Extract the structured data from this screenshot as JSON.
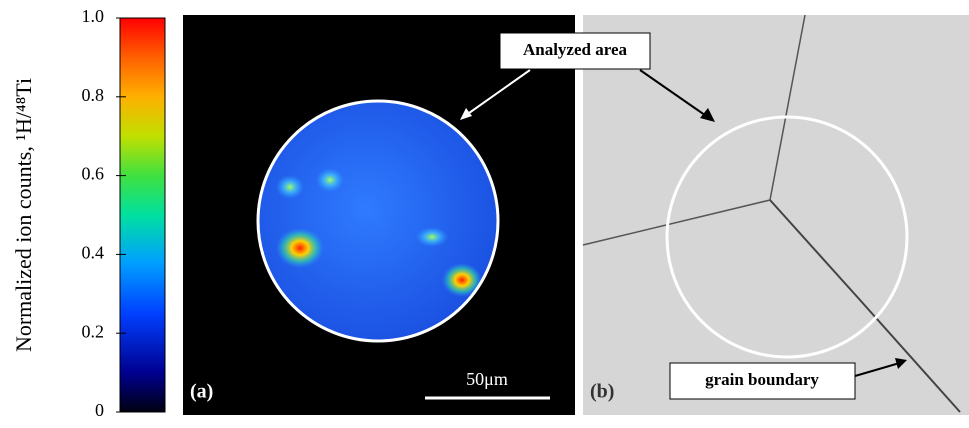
{
  "colorbar": {
    "label": "Normalized ion counts, ¹H/⁴⁸Ti",
    "lim": [
      0,
      1
    ],
    "ticks": [
      0,
      0.2,
      0.4,
      0.6,
      0.8,
      {
        "value": 1,
        "label": "1.0"
      }
    ]
  },
  "panel_a": {
    "label": "(a)",
    "scale_bar": "50μm",
    "annotation": "Analyzed area"
  },
  "panel_b": {
    "label": "(b)",
    "annotation": "grain boundary"
  }
}
